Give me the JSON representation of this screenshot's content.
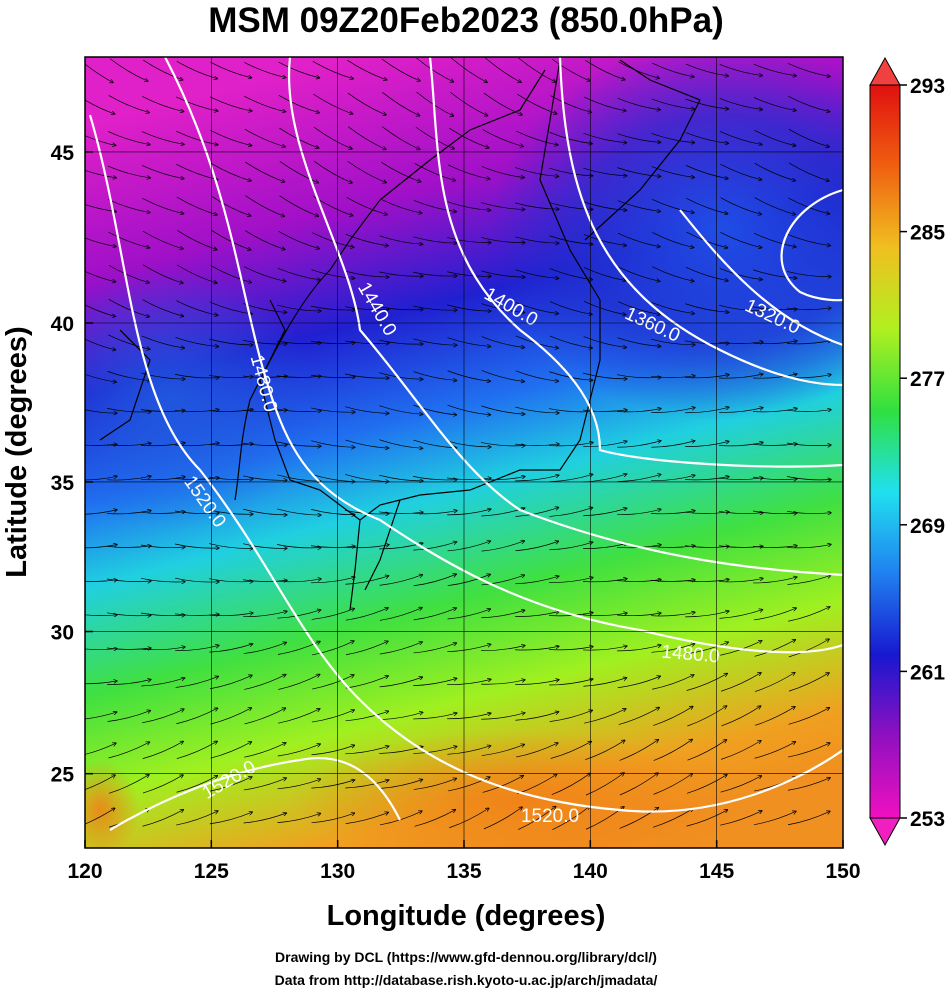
{
  "title": "MSM 09Z20Feb2023 (850.0hPa)",
  "map": {
    "xlabel": "Longitude (degrees)",
    "ylabel": "Latitude  (degrees)",
    "projection": "mercator",
    "xlim": [
      120,
      150
    ],
    "ylim": [
      22.3,
      47.6
    ],
    "xticks": [
      120,
      125,
      130,
      135,
      140,
      145,
      150
    ],
    "yticks": [
      25,
      30,
      35,
      40,
      45
    ],
    "grid": true,
    "contour_labels": [
      "1320.0",
      "1360.0",
      "1400.0",
      "1440.0",
      "1480.0",
      "1520.0",
      "1480.0",
      "1520.0",
      "1520.0"
    ]
  },
  "colorbar": {
    "lim": [
      253,
      293
    ],
    "ticks": [
      253,
      261,
      269,
      277,
      285,
      293
    ],
    "colors": [
      "#f010c0",
      "#9010c0",
      "#1818d0",
      "#2080f0",
      "#20e0f0",
      "#30e040",
      "#b0f020",
      "#f0c020",
      "#f06010",
      "#e01010"
    ]
  },
  "footer": [
    "Drawing by DCL (https://www.gfd-dennou.org/library/dcl/)",
    "Data from http://database.rish.kyoto-u.ac.jp/arch/jmadata/"
  ]
}
